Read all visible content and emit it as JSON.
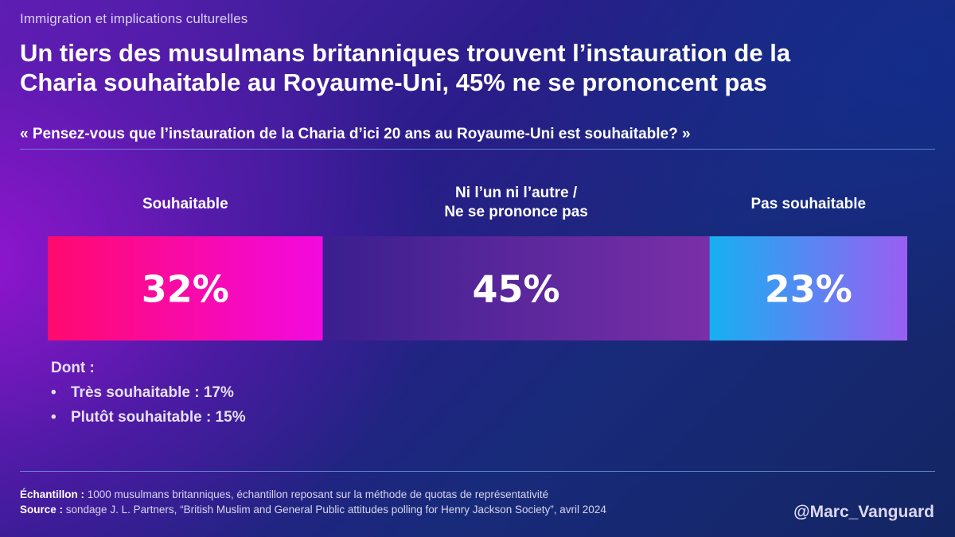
{
  "header": {
    "section": "Immigration et implications culturelles",
    "headline_line1": "Un tiers des musulmans britanniques trouvent l’instauration de la",
    "headline_line2": "Charia souhaitable au Royaume-Uni, 45% ne se prononcent pas",
    "question": "« Pensez-vous que l’instauration de la Charia d’ici 20 ans au Royaume-Uni est souhaitable? »"
  },
  "chart_data": {
    "type": "bar",
    "orientation": "horizontal-stacked",
    "unit": "%",
    "categories": [
      [
        "Souhaitable"
      ],
      [
        "Ni l’un ni l’autre /",
        "Ne se prononce pas"
      ],
      [
        "Pas souhaitable"
      ]
    ],
    "values": [
      32,
      45,
      23
    ],
    "value_labels": [
      "32%",
      "45%",
      "23%"
    ],
    "colors": [
      [
        "#ff0a6e",
        "#f20ae0"
      ],
      [
        "#3a1f8e",
        "#7a2fa8"
      ],
      [
        "#16b0f2",
        "#9a5ef2"
      ]
    ]
  },
  "detail": {
    "title": "Dont :",
    "bullet": "•",
    "items": [
      "Très souhaitable : 17%",
      "Plutôt souhaitable : 15%"
    ]
  },
  "footer": {
    "sample_label": "Échantillon :",
    "sample_text": " 1000 musulmans britanniques, échantillon reposant sur la méthode de quotas de représentativité",
    "source_label": "Source :",
    "source_text": " sondage J. L. Partners, “British Muslim and General Public attitudes polling for Henry Jackson Society”, avril 2024",
    "handle": "@Marc_Vanguard"
  }
}
